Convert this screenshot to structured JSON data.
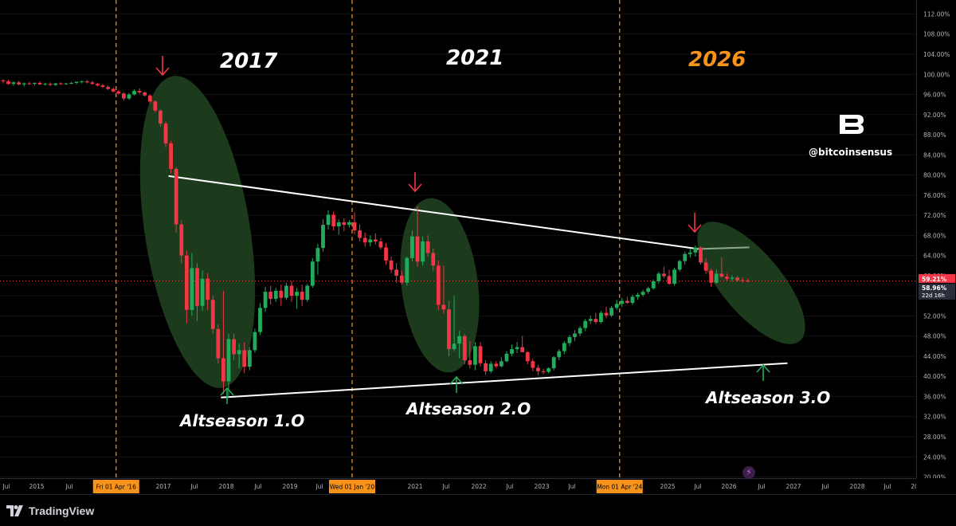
{
  "chart_data": {
    "type": "candlestick",
    "ylabel_unit": "%",
    "ylim": [
      18.5,
      113.5
    ],
    "y_ticks": [
      "112.00%",
      "108.00%",
      "104.00%",
      "100.00%",
      "96.00%",
      "92.00%",
      "88.00%",
      "84.00%",
      "80.00%",
      "76.00%",
      "72.00%",
      "68.00%",
      "64.00%",
      "60.00%",
      "56.00%",
      "52.00%",
      "48.00%",
      "44.00%",
      "40.00%",
      "36.00%",
      "32.00%",
      "28.00%",
      "24.00%",
      "20.00%"
    ],
    "x_ticks": [
      "Jul",
      "2015",
      "Jul",
      "2017",
      "Jul",
      "2018",
      "Jul",
      "2019",
      "Jul",
      "2021",
      "Jul",
      "2022",
      "Jul",
      "2023",
      "Jul",
      "2025",
      "Jul",
      "2026",
      "Jul",
      "2027",
      "Jul",
      "2028",
      "Jul",
      "20"
    ],
    "vertical_markers": [
      {
        "label": "Fri 01 Apr '16",
        "date": "2016-04-01"
      },
      {
        "label": "Wed 01 Jan '20",
        "date": "2020-01-01"
      },
      {
        "label": "Mon 01 Apr '24",
        "date": "2024-04-01"
      }
    ],
    "price_badges": {
      "current": "59.21%",
      "second": "58.96%",
      "countdown": "22d 16h"
    },
    "annotations": {
      "cycle_years": [
        {
          "text": "2017",
          "color": "#ffffff"
        },
        {
          "text": "2021",
          "color": "#ffffff"
        },
        {
          "text": "2026",
          "color": "#f7931a"
        }
      ],
      "seasons": [
        "Altseason 1.O",
        "Altseason 2.O",
        "Altseason 3.O"
      ],
      "watermark": "@bitcoinsensus"
    },
    "trendlines": {
      "upper": [
        {
          "date": "2017-02",
          "value": 79.8
        },
        {
          "date": "2025-07",
          "value": 65.3
        }
      ],
      "lower": [
        {
          "date": "2017-12",
          "value": 35.8
        },
        {
          "date": "2026-12",
          "value": 42.6
        }
      ]
    },
    "series": [
      {
        "values": [
          [
            "2014-05",
            99.6,
            99.8,
            98.4,
            98.8
          ],
          [
            "2014-06",
            98.8,
            99.0,
            98.2,
            98.6
          ],
          [
            "2014-07",
            98.6,
            98.9,
            97.9,
            98.1
          ],
          [
            "2014-08",
            98.1,
            98.6,
            97.7,
            98.4
          ],
          [
            "2014-09",
            98.4,
            98.7,
            97.8,
            98.0
          ],
          [
            "2014-10",
            98.0,
            98.4,
            97.6,
            98.2
          ],
          [
            "2014-11",
            98.2,
            98.5,
            97.9,
            98.1
          ],
          [
            "2014-12",
            98.1,
            98.4,
            97.8,
            98.3
          ],
          [
            "2015-01",
            98.3,
            98.6,
            97.9,
            98.0
          ],
          [
            "2015-02",
            98.0,
            98.3,
            97.8,
            98.1
          ],
          [
            "2015-03",
            98.1,
            98.4,
            97.7,
            97.9
          ],
          [
            "2015-04",
            97.9,
            98.3,
            97.7,
            98.2
          ],
          [
            "2015-05",
            98.2,
            98.4,
            97.9,
            98.1
          ],
          [
            "2015-06",
            98.1,
            98.3,
            97.9,
            98.2
          ],
          [
            "2015-07",
            98.2,
            98.5,
            98.0,
            98.3
          ],
          [
            "2015-08",
            98.3,
            98.6,
            98.0,
            98.5
          ],
          [
            "2015-09",
            98.5,
            98.8,
            98.2,
            98.6
          ],
          [
            "2015-10",
            98.6,
            98.9,
            98.2,
            98.4
          ],
          [
            "2015-11",
            98.4,
            98.7,
            97.9,
            98.1
          ],
          [
            "2015-12",
            98.1,
            98.3,
            97.6,
            97.8
          ],
          [
            "2016-01",
            97.8,
            98.1,
            97.3,
            97.5
          ],
          [
            "2016-02",
            97.5,
            97.8,
            96.9,
            97.1
          ],
          [
            "2016-03",
            97.1,
            97.4,
            96.4,
            96.6
          ],
          [
            "2016-04",
            96.6,
            96.9,
            96.0,
            96.2
          ],
          [
            "2016-05",
            96.2,
            96.4,
            94.8,
            95.2
          ],
          [
            "2016-06",
            95.2,
            96.3,
            94.9,
            96.0
          ],
          [
            "2016-07",
            96.0,
            97.0,
            95.8,
            96.7
          ],
          [
            "2016-08",
            96.7,
            97.2,
            96.1,
            96.4
          ],
          [
            "2016-09",
            96.4,
            96.6,
            95.6,
            95.8
          ],
          [
            "2016-10",
            95.8,
            96.0,
            94.3,
            94.6
          ],
          [
            "2016-11",
            94.6,
            94.8,
            92.4,
            92.8
          ],
          [
            "2016-12",
            92.8,
            93.0,
            89.6,
            90.2
          ],
          [
            "2017-01",
            90.2,
            90.6,
            85.5,
            86.3
          ],
          [
            "2017-02",
            86.3,
            86.8,
            80.3,
            81.2
          ],
          [
            "2017-03",
            81.2,
            81.6,
            68.5,
            70.2
          ],
          [
            "2017-04",
            70.2,
            71.0,
            62.5,
            64.0
          ],
          [
            "2017-05",
            64.0,
            65.0,
            50.5,
            53.2
          ],
          [
            "2017-06",
            53.2,
            64.5,
            52.0,
            61.5
          ],
          [
            "2017-07",
            61.5,
            62.5,
            51.0,
            54.0
          ],
          [
            "2017-08",
            54.0,
            61.0,
            53.0,
            59.4
          ],
          [
            "2017-09",
            59.4,
            60.5,
            53.2,
            55.2
          ],
          [
            "2017-10",
            55.2,
            56.0,
            48.5,
            49.4
          ],
          [
            "2017-11",
            49.4,
            50.3,
            42.5,
            43.6
          ],
          [
            "2017-12",
            43.6,
            57.0,
            36.5,
            39.0
          ],
          [
            "2018-01",
            39.0,
            48.5,
            35.8,
            47.4
          ],
          [
            "2018-02",
            47.4,
            48.5,
            43.2,
            44.4
          ],
          [
            "2018-03",
            44.4,
            46.5,
            41.6,
            45.2
          ],
          [
            "2018-04",
            45.2,
            46.8,
            40.6,
            41.9
          ],
          [
            "2018-05",
            41.9,
            45.8,
            41.2,
            45.2
          ],
          [
            "2018-06",
            45.2,
            49.5,
            44.7,
            48.8
          ],
          [
            "2018-07",
            48.8,
            54.5,
            48.2,
            53.6
          ],
          [
            "2018-08",
            53.6,
            57.8,
            52.8,
            56.8
          ],
          [
            "2018-09",
            56.8,
            58.0,
            54.3,
            55.4
          ],
          [
            "2018-10",
            55.4,
            57.6,
            54.8,
            57.0
          ],
          [
            "2018-11",
            57.0,
            58.2,
            54.0,
            55.6
          ],
          [
            "2018-12",
            55.6,
            58.6,
            55.2,
            58.0
          ],
          [
            "2019-01",
            58.0,
            59.0,
            54.8,
            56.0
          ],
          [
            "2019-02",
            56.0,
            57.6,
            53.4,
            56.8
          ],
          [
            "2019-03",
            56.8,
            58.2,
            54.0,
            55.2
          ],
          [
            "2019-04",
            55.2,
            58.4,
            54.8,
            58.0
          ],
          [
            "2019-05",
            58.0,
            63.5,
            57.6,
            62.8
          ],
          [
            "2019-06",
            62.8,
            66.3,
            60.2,
            65.5
          ],
          [
            "2019-07",
            65.5,
            71.2,
            64.8,
            70.1
          ],
          [
            "2019-08",
            70.1,
            73.0,
            69.2,
            72.1
          ],
          [
            "2019-09",
            72.1,
            72.7,
            69.0,
            69.8
          ],
          [
            "2019-10",
            69.8,
            71.2,
            68.1,
            70.6
          ],
          [
            "2019-11",
            70.6,
            71.4,
            68.8,
            70.1
          ],
          [
            "2019-12",
            70.1,
            71.0,
            69.6,
            70.6
          ],
          [
            "2020-01",
            70.6,
            72.6,
            68.2,
            69.0
          ],
          [
            "2020-02",
            69.0,
            70.2,
            66.8,
            67.5
          ],
          [
            "2020-03",
            67.5,
            68.6,
            65.8,
            66.6
          ],
          [
            "2020-04",
            66.6,
            68.0,
            65.8,
            67.2
          ],
          [
            "2020-05",
            67.2,
            68.4,
            66.2,
            66.8
          ],
          [
            "2020-06",
            66.8,
            67.5,
            65.2,
            65.6
          ],
          [
            "2020-07",
            65.6,
            66.5,
            62.2,
            63.0
          ],
          [
            "2020-08",
            63.0,
            63.8,
            60.5,
            61.2
          ],
          [
            "2020-09",
            61.2,
            62.5,
            58.6,
            60.0
          ],
          [
            "2020-10",
            60.0,
            61.0,
            58.2,
            58.6
          ],
          [
            "2020-11",
            58.6,
            63.8,
            58.0,
            63.5
          ],
          [
            "2020-12",
            63.5,
            69.0,
            62.8,
            67.8
          ],
          [
            "2021-01",
            67.8,
            73.8,
            61.8,
            62.8
          ],
          [
            "2021-02",
            62.8,
            67.8,
            62.0,
            66.8
          ],
          [
            "2021-03",
            66.8,
            68.0,
            63.8,
            64.5
          ],
          [
            "2021-04",
            64.5,
            65.4,
            61.0,
            62.0
          ],
          [
            "2021-05",
            62.0,
            63.0,
            53.2,
            54.2
          ],
          [
            "2021-06",
            54.2,
            62.0,
            52.5,
            53.3
          ],
          [
            "2021-07",
            53.3,
            55.0,
            44.0,
            45.4
          ],
          [
            "2021-08",
            45.4,
            56.0,
            45.0,
            46.5
          ],
          [
            "2021-09",
            46.5,
            49.0,
            43.6,
            48.0
          ],
          [
            "2021-10",
            48.0,
            48.4,
            42.4,
            43.2
          ],
          [
            "2021-11",
            43.2,
            47.0,
            41.6,
            42.3
          ],
          [
            "2021-12",
            42.3,
            46.8,
            41.2,
            46.0
          ],
          [
            "2022-01",
            46.0,
            46.8,
            42.0,
            42.6
          ],
          [
            "2022-02",
            42.6,
            43.2,
            40.3,
            41.0
          ],
          [
            "2022-03",
            41.0,
            43.0,
            40.6,
            42.5
          ],
          [
            "2022-04",
            42.5,
            43.0,
            41.6,
            42.0
          ],
          [
            "2022-05",
            42.0,
            43.8,
            41.8,
            43.0
          ],
          [
            "2022-06",
            43.0,
            45.0,
            42.8,
            44.5
          ],
          [
            "2022-07",
            44.5,
            46.3,
            44.0,
            45.4
          ],
          [
            "2022-08",
            45.4,
            46.8,
            44.6,
            45.8
          ],
          [
            "2022-09",
            45.8,
            48.0,
            44.8,
            44.8
          ],
          [
            "2022-10",
            44.8,
            45.0,
            42.4,
            43.0
          ],
          [
            "2022-11",
            43.0,
            43.5,
            41.0,
            41.7
          ],
          [
            "2022-12",
            41.7,
            42.3,
            40.2,
            41.0
          ],
          [
            "2023-01",
            41.0,
            41.5,
            40.4,
            40.9
          ],
          [
            "2023-02",
            40.9,
            41.8,
            40.6,
            41.6
          ],
          [
            "2023-03",
            41.6,
            44.0,
            41.2,
            43.8
          ],
          [
            "2023-04",
            43.8,
            45.4,
            43.2,
            45.0
          ],
          [
            "2023-05",
            45.0,
            47.0,
            44.4,
            46.6
          ],
          [
            "2023-06",
            46.6,
            48.2,
            46.0,
            47.8
          ],
          [
            "2023-07",
            47.8,
            49.2,
            47.0,
            48.5
          ],
          [
            "2023-08",
            48.5,
            50.0,
            48.0,
            49.6
          ],
          [
            "2023-09",
            49.6,
            51.4,
            49.0,
            51.0
          ],
          [
            "2023-10",
            51.0,
            52.0,
            50.4,
            51.4
          ],
          [
            "2023-11",
            51.4,
            52.6,
            50.4,
            50.8
          ],
          [
            "2023-12",
            50.8,
            53.0,
            50.5,
            52.6
          ],
          [
            "2024-01",
            52.6,
            53.8,
            51.6,
            52.1
          ],
          [
            "2024-02",
            52.1,
            54.0,
            51.8,
            53.6
          ],
          [
            "2024-03",
            53.6,
            55.2,
            53.2,
            54.4
          ],
          [
            "2024-04",
            54.4,
            55.6,
            53.8,
            55.0
          ],
          [
            "2024-05",
            55.0,
            55.8,
            54.4,
            54.6
          ],
          [
            "2024-06",
            54.6,
            56.2,
            54.2,
            55.8
          ],
          [
            "2024-07",
            55.8,
            56.6,
            55.2,
            56.2
          ],
          [
            "2024-08",
            56.2,
            57.2,
            55.8,
            56.8
          ],
          [
            "2024-09",
            56.8,
            57.8,
            56.4,
            57.5
          ],
          [
            "2024-10",
            57.5,
            59.2,
            57.2,
            58.9
          ],
          [
            "2024-11",
            58.9,
            60.8,
            58.4,
            60.4
          ],
          [
            "2024-12",
            60.4,
            61.8,
            59.5,
            59.9
          ],
          [
            "2025-01",
            59.9,
            61.2,
            58.2,
            58.4
          ],
          [
            "2025-02",
            58.4,
            61.6,
            58.0,
            61.2
          ],
          [
            "2025-03",
            61.2,
            63.2,
            60.8,
            62.9
          ],
          [
            "2025-04",
            62.9,
            64.8,
            62.2,
            64.3
          ],
          [
            "2025-05",
            64.3,
            65.4,
            63.6,
            64.6
          ],
          [
            "2025-06",
            64.6,
            66.0,
            63.8,
            65.6
          ],
          [
            "2025-07",
            65.6,
            65.8,
            62.2,
            62.6
          ],
          [
            "2025-08",
            62.6,
            63.4,
            60.4,
            61.0
          ],
          [
            "2025-09",
            61.0,
            61.4,
            57.8,
            58.6
          ],
          [
            "2025-10",
            58.6,
            61.2,
            58.4,
            60.4
          ],
          [
            "2025-11",
            60.4,
            63.6,
            59.6,
            59.8
          ],
          [
            "2025-12",
            59.8,
            60.4,
            58.9,
            59.4
          ],
          [
            "2026-01",
            59.4,
            60.1,
            58.8,
            59.6
          ],
          [
            "2026-02",
            59.6,
            59.9,
            58.7,
            59.1
          ],
          [
            "2026-03",
            59.1,
            59.6,
            58.6,
            59.0
          ],
          [
            "2026-04",
            59.0,
            59.4,
            58.7,
            58.96
          ]
        ]
      }
    ]
  },
  "footer": {
    "brand": "TradingView"
  }
}
